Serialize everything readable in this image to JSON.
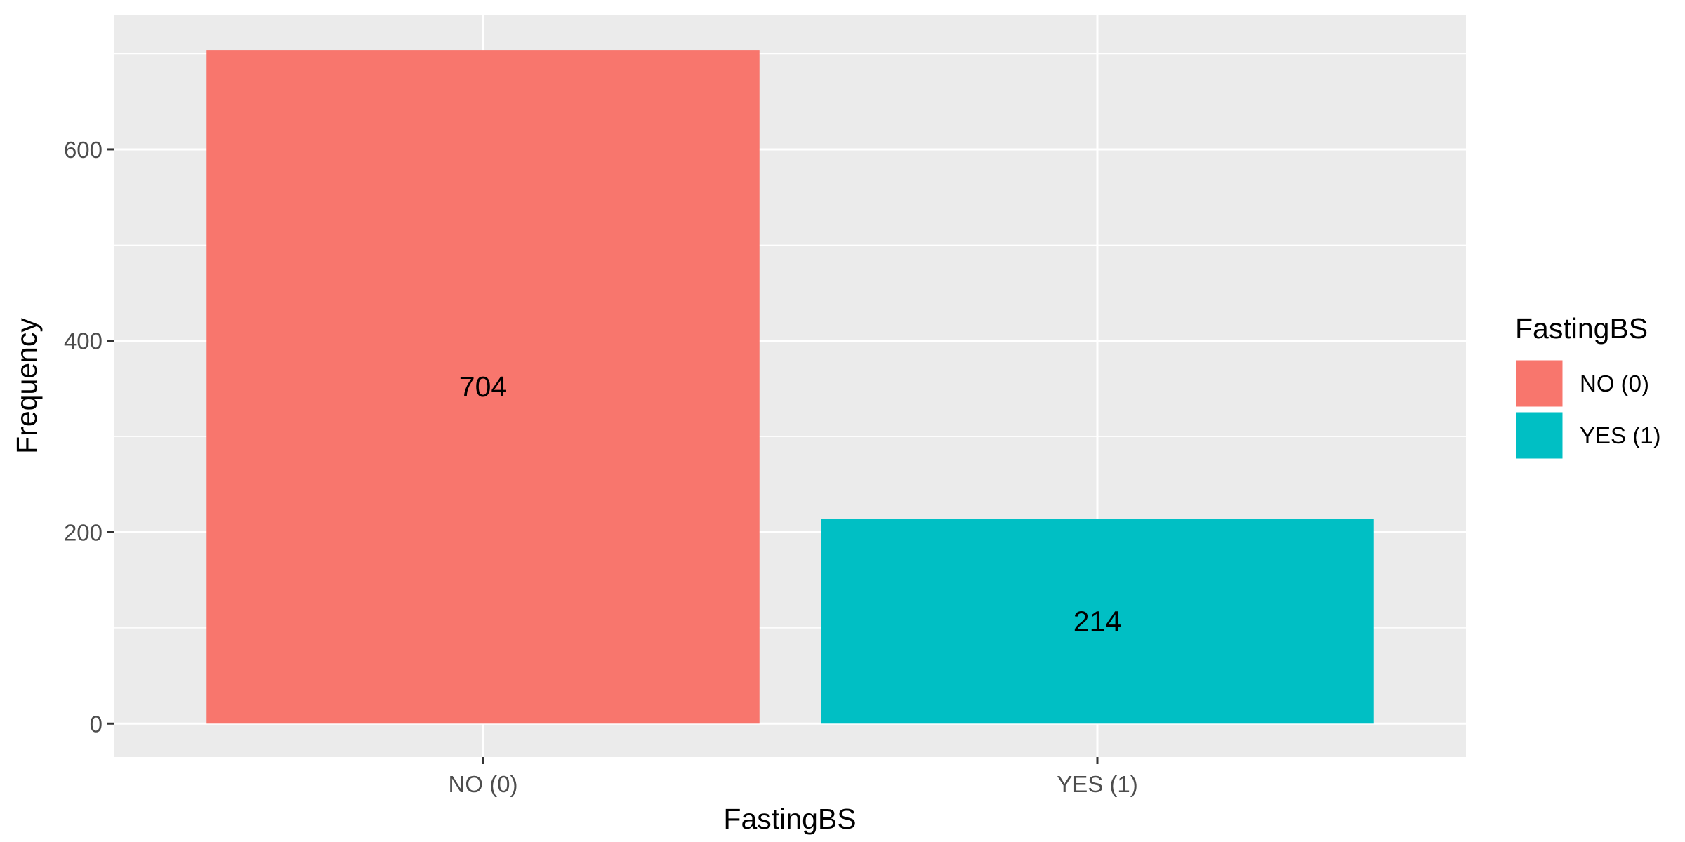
{
  "chart_data": {
    "type": "bar",
    "title": "",
    "xlabel": "FastingBS",
    "ylabel": "Frequency",
    "categories": [
      "NO (0)",
      "YES (1)"
    ],
    "values": [
      704,
      214
    ],
    "data_labels": [
      "704",
      "214"
    ],
    "colors": [
      "#F8766D",
      "#00BFC4"
    ],
    "ylim": [
      -35,
      740
    ],
    "yticks": [
      0,
      200,
      400,
      600
    ],
    "yticks_minor": [
      100,
      300,
      500,
      700
    ],
    "ytick_labels": [
      "0",
      "200",
      "400",
      "600"
    ],
    "grid": true,
    "panel_background": "#EBEBEB",
    "legend": {
      "title": "FastingBS",
      "placement": "right",
      "entries": [
        "NO (0)",
        "YES (1)"
      ]
    }
  }
}
